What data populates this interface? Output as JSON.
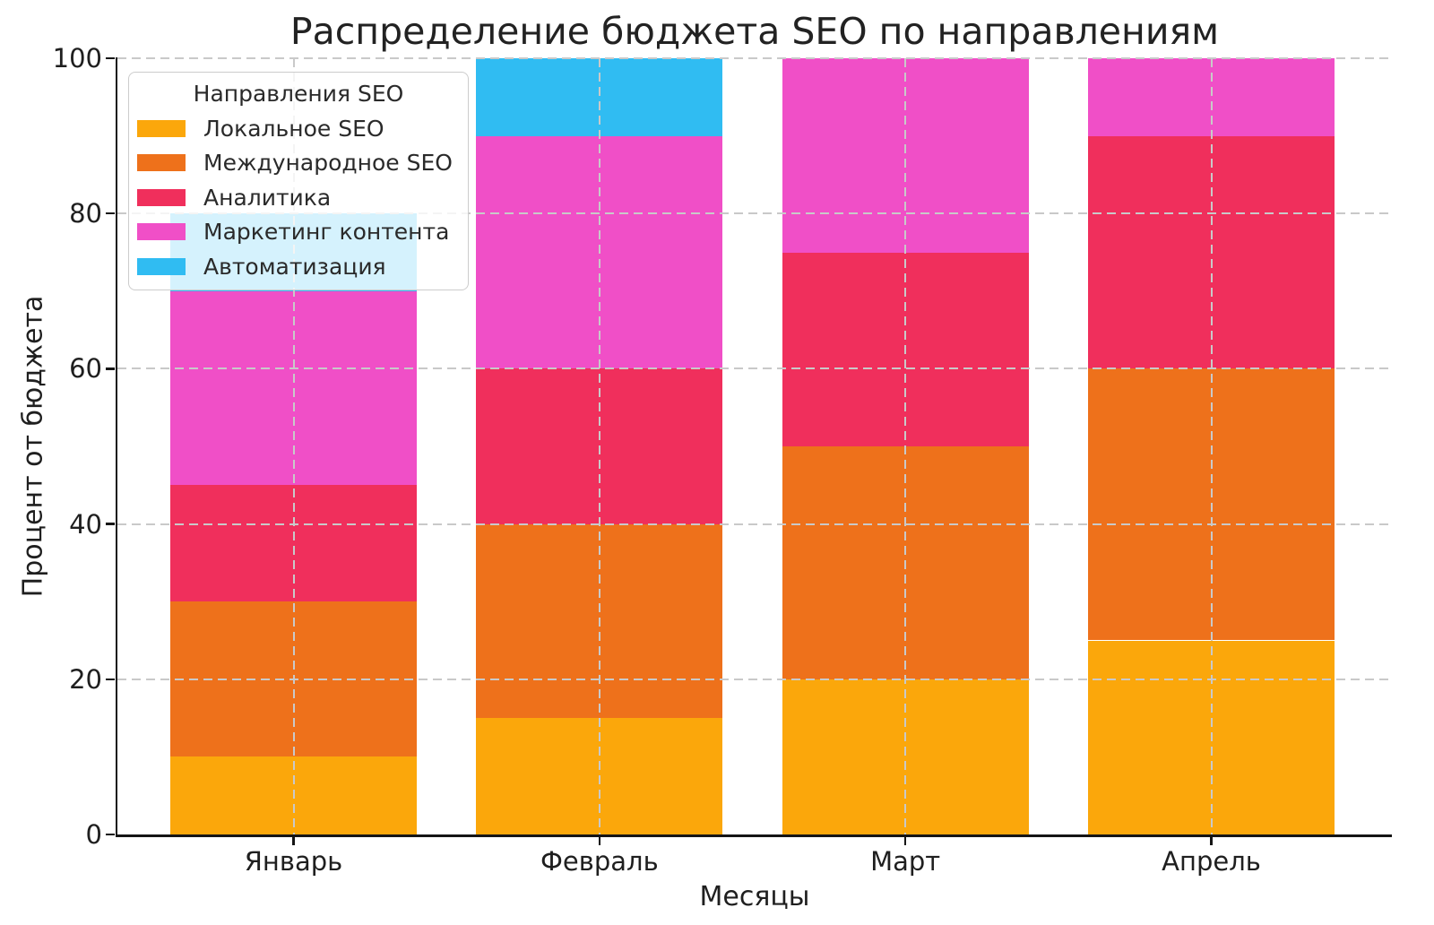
{
  "chart_data": {
    "type": "bar",
    "stacked": true,
    "title": "Распределение бюджета SEO по направлениям",
    "xlabel": "Месяцы",
    "ylabel": "Процент от бюджета",
    "categories": [
      "Январь",
      "Февраль",
      "Март",
      "Апрель"
    ],
    "series": [
      {
        "name": "Локальное SEO",
        "color": "#FBA70B",
        "values": [
          10,
          15,
          20,
          25
        ]
      },
      {
        "name": "Международное SEO",
        "color": "#EE711B",
        "values": [
          20,
          25,
          30,
          35
        ]
      },
      {
        "name": "Аналитика",
        "color": "#F02F5C",
        "values": [
          15,
          20,
          25,
          30
        ]
      },
      {
        "name": "Маркетинг контента",
        "color": "#F04FC7",
        "values": [
          25,
          30,
          25,
          10
        ]
      },
      {
        "name": "Автоматизация",
        "color": "#30BCF2",
        "values": [
          10,
          10,
          0,
          0
        ]
      }
    ],
    "ylim": [
      0,
      100
    ],
    "yticks": [
      0,
      20,
      40,
      60,
      80,
      100
    ],
    "grid": true,
    "legend": {
      "title": "Направления SEO",
      "position": "upper left"
    }
  }
}
